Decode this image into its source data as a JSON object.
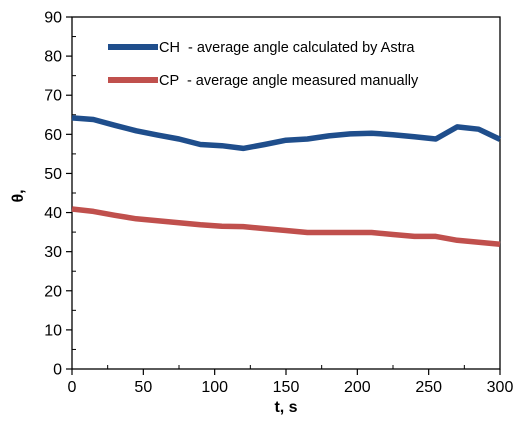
{
  "chart_data": {
    "type": "line",
    "title": "",
    "xlabel": "t, s",
    "ylabel": "θ,",
    "xlim": [
      0,
      300
    ],
    "ylim": [
      0,
      90
    ],
    "xticks": [
      0,
      50,
      100,
      150,
      200,
      250,
      300
    ],
    "yticks": [
      0,
      10,
      20,
      30,
      40,
      50,
      60,
      70,
      80,
      90
    ],
    "grid": false,
    "legend_position": "top-right",
    "series": [
      {
        "name": "CH  - average angle calculated by Astra",
        "color": "#1f4e8c",
        "x": [
          0,
          15,
          30,
          45,
          60,
          75,
          90,
          105,
          120,
          135,
          150,
          165,
          180,
          195,
          210,
          225,
          240,
          255,
          270,
          285,
          300
        ],
        "y": [
          64.2,
          63.8,
          62.3,
          60.9,
          59.8,
          58.8,
          57.4,
          57.1,
          56.4,
          57.4,
          58.5,
          58.8,
          59.6,
          60.1,
          60.3,
          59.9,
          59.4,
          58.8,
          61.9,
          61.3,
          58.7
        ]
      },
      {
        "name": "CP  - average angle measured manually",
        "color": "#c0504d",
        "x": [
          0,
          15,
          30,
          45,
          60,
          75,
          90,
          105,
          120,
          135,
          150,
          165,
          180,
          195,
          210,
          225,
          240,
          255,
          270,
          285,
          300
        ],
        "y": [
          40.9,
          40.3,
          39.3,
          38.4,
          37.9,
          37.4,
          36.9,
          36.5,
          36.4,
          35.9,
          35.4,
          34.9,
          34.9,
          34.9,
          34.9,
          34.4,
          33.9,
          33.9,
          32.9,
          32.4,
          31.9
        ]
      }
    ]
  }
}
